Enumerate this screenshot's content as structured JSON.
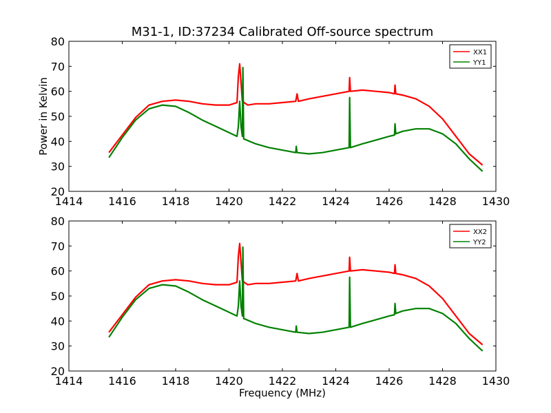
{
  "chart_data": [
    {
      "type": "line",
      "title": "M31-1, ID:37234 Calibrated Off-source spectrum",
      "xlabel": "",
      "ylabel": "Power in Kelvin",
      "xlim": [
        1414,
        1430
      ],
      "ylim": [
        20,
        80
      ],
      "xticks": [
        "1414",
        "1416",
        "1418",
        "1420",
        "1422",
        "1424",
        "1426",
        "1428",
        "1430"
      ],
      "yticks": [
        "20",
        "30",
        "40",
        "50",
        "60",
        "70",
        "80"
      ],
      "legend_position": "top-right",
      "series": [
        {
          "name": "XX1",
          "color": "#ff0000",
          "x": [
            1415.5,
            1416.0,
            1416.5,
            1417.0,
            1417.5,
            1418.0,
            1418.5,
            1419.0,
            1419.5,
            1420.0,
            1420.3,
            1420.35,
            1420.4,
            1420.5,
            1420.7,
            1421.0,
            1421.5,
            1422.0,
            1422.5,
            1422.55,
            1422.6,
            1423.0,
            1423.5,
            1424.0,
            1424.5,
            1424.52,
            1424.55,
            1425.0,
            1425.5,
            1426.0,
            1426.2,
            1426.22,
            1426.25,
            1426.5,
            1427.0,
            1427.5,
            1428.0,
            1428.5,
            1429.0,
            1429.5
          ],
          "y": [
            35.5,
            42.5,
            49.5,
            54.5,
            56.0,
            56.5,
            56.0,
            55.0,
            54.5,
            54.5,
            55.5,
            66.0,
            71.0,
            56.0,
            54.5,
            55.0,
            55.0,
            55.5,
            56.0,
            59.0,
            56.0,
            57.0,
            58.0,
            59.0,
            60.0,
            65.5,
            60.0,
            60.5,
            60.0,
            59.5,
            59.0,
            62.5,
            59.0,
            58.5,
            57.0,
            54.0,
            49.0,
            42.0,
            35.0,
            30.5
          ]
        },
        {
          "name": "YY1",
          "color": "#008000",
          "x": [
            1415.5,
            1416.0,
            1416.5,
            1417.0,
            1417.5,
            1418.0,
            1418.5,
            1419.0,
            1419.5,
            1420.0,
            1420.3,
            1420.35,
            1420.4,
            1420.45,
            1420.5,
            1420.52,
            1420.55,
            1421.0,
            1421.5,
            1422.0,
            1422.5,
            1422.52,
            1422.55,
            1423.0,
            1423.5,
            1424.0,
            1424.5,
            1424.52,
            1424.55,
            1425.0,
            1425.5,
            1426.0,
            1426.2,
            1426.22,
            1426.25,
            1426.5,
            1427.0,
            1427.5,
            1428.0,
            1428.5,
            1429.0,
            1429.5
          ],
          "y": [
            33.5,
            41.5,
            48.5,
            53.0,
            54.5,
            54.0,
            51.5,
            48.5,
            46.0,
            43.5,
            42.0,
            46.0,
            56.0,
            46.0,
            42.0,
            69.5,
            41.0,
            39.0,
            37.5,
            36.5,
            35.5,
            38.0,
            35.5,
            35.0,
            35.5,
            36.5,
            37.5,
            57.5,
            37.5,
            39.0,
            40.5,
            42.0,
            42.5,
            47.0,
            43.0,
            44.0,
            45.0,
            45.0,
            43.0,
            39.0,
            33.0,
            28.0
          ]
        }
      ]
    },
    {
      "type": "line",
      "title": "",
      "xlabel": "Frequency (MHz)",
      "ylabel": "",
      "xlim": [
        1414,
        1430
      ],
      "ylim": [
        20,
        80
      ],
      "xticks": [
        "1414",
        "1416",
        "1418",
        "1420",
        "1422",
        "1424",
        "1426",
        "1428",
        "1430"
      ],
      "yticks": [
        "20",
        "30",
        "40",
        "50",
        "60",
        "70",
        "80"
      ],
      "legend_position": "top-right",
      "series": [
        {
          "name": "XX2",
          "color": "#ff0000",
          "x": [
            1415.5,
            1416.0,
            1416.5,
            1417.0,
            1417.5,
            1418.0,
            1418.5,
            1419.0,
            1419.5,
            1420.0,
            1420.3,
            1420.35,
            1420.4,
            1420.5,
            1420.7,
            1421.0,
            1421.5,
            1422.0,
            1422.5,
            1422.55,
            1422.6,
            1423.0,
            1423.5,
            1424.0,
            1424.5,
            1424.52,
            1424.55,
            1425.0,
            1425.5,
            1426.0,
            1426.2,
            1426.22,
            1426.25,
            1426.5,
            1427.0,
            1427.5,
            1428.0,
            1428.5,
            1429.0,
            1429.5
          ],
          "y": [
            35.5,
            42.5,
            49.5,
            54.5,
            56.0,
            56.5,
            56.0,
            55.0,
            54.5,
            54.5,
            55.5,
            66.0,
            71.0,
            56.0,
            54.5,
            55.0,
            55.0,
            55.5,
            56.0,
            59.0,
            56.0,
            57.0,
            58.0,
            59.0,
            60.0,
            65.5,
            60.0,
            60.5,
            60.0,
            59.5,
            59.0,
            62.5,
            59.0,
            58.5,
            57.0,
            54.0,
            49.0,
            42.0,
            35.0,
            30.5
          ]
        },
        {
          "name": "YY2",
          "color": "#008000",
          "x": [
            1415.5,
            1416.0,
            1416.5,
            1417.0,
            1417.5,
            1418.0,
            1418.5,
            1419.0,
            1419.5,
            1420.0,
            1420.3,
            1420.35,
            1420.4,
            1420.45,
            1420.5,
            1420.52,
            1420.55,
            1421.0,
            1421.5,
            1422.0,
            1422.5,
            1422.52,
            1422.55,
            1423.0,
            1423.5,
            1424.0,
            1424.5,
            1424.52,
            1424.55,
            1425.0,
            1425.5,
            1426.0,
            1426.2,
            1426.22,
            1426.25,
            1426.5,
            1427.0,
            1427.5,
            1428.0,
            1428.5,
            1429.0,
            1429.5
          ],
          "y": [
            33.5,
            41.5,
            48.5,
            53.0,
            54.5,
            54.0,
            51.5,
            48.5,
            46.0,
            43.5,
            42.0,
            46.0,
            56.0,
            46.0,
            42.0,
            69.5,
            41.0,
            39.0,
            37.5,
            36.5,
            35.5,
            38.0,
            35.5,
            35.0,
            35.5,
            36.5,
            37.5,
            57.5,
            37.5,
            39.0,
            40.5,
            42.0,
            42.5,
            47.0,
            43.0,
            44.0,
            45.0,
            45.0,
            43.0,
            39.0,
            33.0,
            28.0
          ]
        }
      ]
    }
  ]
}
